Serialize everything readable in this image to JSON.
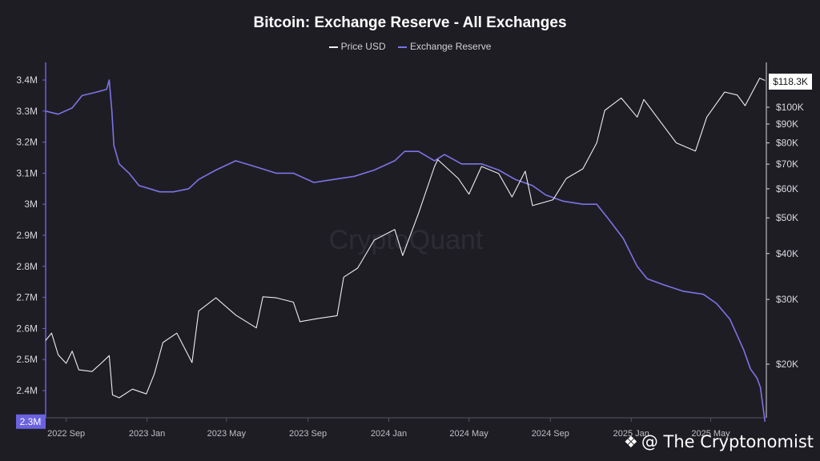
{
  "chart_data": {
    "type": "line",
    "title": "Bitcoin: Exchange Reserve - All Exchanges",
    "watermark": "CryptoQuant",
    "x_ticks": [
      "2022 Sep",
      "2023 Jan",
      "2023 May",
      "2023 Sep",
      "2024 Jan",
      "2024 May",
      "2024 Sep",
      "2025 Jan",
      "2025 May"
    ],
    "x_range": [
      "2022-08",
      "2025-07"
    ],
    "left_axis": {
      "series": "Exchange Reserve",
      "ylim": [
        2.28,
        3.42
      ],
      "ticks": [
        {
          "value": 3.4,
          "label": "3.4M"
        },
        {
          "value": 3.3,
          "label": "3.3M"
        },
        {
          "value": 3.2,
          "label": "3.2M"
        },
        {
          "value": 3.1,
          "label": "3.1M"
        },
        {
          "value": 3.0,
          "label": "3M"
        },
        {
          "value": 2.9,
          "label": "2.9M"
        },
        {
          "value": 2.8,
          "label": "2.8M"
        },
        {
          "value": 2.7,
          "label": "2.7M"
        },
        {
          "value": 2.6,
          "label": "2.6M"
        },
        {
          "value": 2.5,
          "label": "2.5M"
        },
        {
          "value": 2.4,
          "label": "2.4M"
        }
      ],
      "current_label": "2.3M",
      "current_value": 2.3
    },
    "right_axis": {
      "series": "Price USD",
      "scale": "log",
      "ticks": [
        {
          "value": 100000,
          "label": "$100K"
        },
        {
          "value": 90000,
          "label": "$90K"
        },
        {
          "value": 80000,
          "label": "$80K"
        },
        {
          "value": 70000,
          "label": "$70K"
        },
        {
          "value": 60000,
          "label": "$60K"
        },
        {
          "value": 50000,
          "label": "$50K"
        },
        {
          "value": 40000,
          "label": "$40K"
        },
        {
          "value": 30000,
          "label": "$30K"
        },
        {
          "value": 20000,
          "label": "$20K"
        }
      ],
      "current_label": "$118.3K",
      "current_value": 118300
    },
    "series": [
      {
        "name": "Exchange Reserve",
        "color": "#7b74e6",
        "unit": "M BTC",
        "points": [
          [
            "2022-08-01",
            3.3
          ],
          [
            "2022-08-20",
            3.29
          ],
          [
            "2022-09-10",
            3.31
          ],
          [
            "2022-09-25",
            3.35
          ],
          [
            "2022-10-15",
            3.36
          ],
          [
            "2022-11-01",
            3.37
          ],
          [
            "2022-11-05",
            3.4
          ],
          [
            "2022-11-09",
            3.3
          ],
          [
            "2022-11-12",
            3.19
          ],
          [
            "2022-11-20",
            3.13
          ],
          [
            "2022-12-05",
            3.1
          ],
          [
            "2022-12-20",
            3.06
          ],
          [
            "2023-01-05",
            3.05
          ],
          [
            "2023-01-20",
            3.04
          ],
          [
            "2023-02-10",
            3.04
          ],
          [
            "2023-03-05",
            3.05
          ],
          [
            "2023-03-20",
            3.08
          ],
          [
            "2023-04-15",
            3.11
          ],
          [
            "2023-05-15",
            3.14
          ],
          [
            "2023-06-15",
            3.12
          ],
          [
            "2023-07-15",
            3.1
          ],
          [
            "2023-08-10",
            3.1
          ],
          [
            "2023-09-10",
            3.07
          ],
          [
            "2023-10-10",
            3.08
          ],
          [
            "2023-11-10",
            3.09
          ],
          [
            "2023-12-10",
            3.11
          ],
          [
            "2024-01-10",
            3.14
          ],
          [
            "2024-01-25",
            3.17
          ],
          [
            "2024-02-15",
            3.17
          ],
          [
            "2024-03-10",
            3.14
          ],
          [
            "2024-03-25",
            3.16
          ],
          [
            "2024-04-20",
            3.13
          ],
          [
            "2024-05-20",
            3.13
          ],
          [
            "2024-06-15",
            3.11
          ],
          [
            "2024-07-10",
            3.08
          ],
          [
            "2024-08-05",
            3.06
          ],
          [
            "2024-08-25",
            3.03
          ],
          [
            "2024-09-20",
            3.01
          ],
          [
            "2024-10-20",
            3.0
          ],
          [
            "2024-11-10",
            3.0
          ],
          [
            "2024-11-25",
            2.96
          ],
          [
            "2024-12-20",
            2.89
          ],
          [
            "2025-01-10",
            2.8
          ],
          [
            "2025-01-25",
            2.76
          ],
          [
            "2025-02-20",
            2.74
          ],
          [
            "2025-03-20",
            2.72
          ],
          [
            "2025-04-20",
            2.71
          ],
          [
            "2025-05-10",
            2.68
          ],
          [
            "2025-05-30",
            2.63
          ],
          [
            "2025-06-20",
            2.53
          ],
          [
            "2025-06-30",
            2.47
          ],
          [
            "2025-07-10",
            2.44
          ],
          [
            "2025-07-15",
            2.41
          ],
          [
            "2025-07-22",
            2.3
          ]
        ]
      },
      {
        "name": "Price USD",
        "color": "#ededf0",
        "unit": "USD",
        "points": [
          [
            "2022-08-01",
            23200
          ],
          [
            "2022-08-10",
            24300
          ],
          [
            "2022-08-20",
            21200
          ],
          [
            "2022-09-01",
            20100
          ],
          [
            "2022-09-10",
            21700
          ],
          [
            "2022-09-20",
            19300
          ],
          [
            "2022-10-10",
            19100
          ],
          [
            "2022-10-25",
            20200
          ],
          [
            "2022-11-05",
            21100
          ],
          [
            "2022-11-10",
            16500
          ],
          [
            "2022-11-20",
            16200
          ],
          [
            "2022-12-10",
            17100
          ],
          [
            "2022-12-31",
            16600
          ],
          [
            "2023-01-12",
            18800
          ],
          [
            "2023-01-25",
            22900
          ],
          [
            "2023-02-15",
            24300
          ],
          [
            "2023-03-10",
            20200
          ],
          [
            "2023-03-20",
            27900
          ],
          [
            "2023-04-15",
            30300
          ],
          [
            "2023-05-15",
            27200
          ],
          [
            "2023-06-15",
            25100
          ],
          [
            "2023-06-25",
            30500
          ],
          [
            "2023-07-15",
            30300
          ],
          [
            "2023-08-10",
            29500
          ],
          [
            "2023-08-20",
            26100
          ],
          [
            "2023-09-15",
            26600
          ],
          [
            "2023-10-15",
            27100
          ],
          [
            "2023-10-25",
            34500
          ],
          [
            "2023-11-15",
            36500
          ],
          [
            "2023-12-10",
            43500
          ],
          [
            "2024-01-10",
            46500
          ],
          [
            "2024-01-22",
            39500
          ],
          [
            "2024-02-15",
            51500
          ],
          [
            "2024-03-10",
            69000
          ],
          [
            "2024-03-15",
            72000
          ],
          [
            "2024-04-15",
            64000
          ],
          [
            "2024-05-01",
            58000
          ],
          [
            "2024-05-20",
            69000
          ],
          [
            "2024-06-15",
            66000
          ],
          [
            "2024-07-05",
            57000
          ],
          [
            "2024-07-25",
            67000
          ],
          [
            "2024-08-05",
            54000
          ],
          [
            "2024-09-05",
            56000
          ],
          [
            "2024-09-25",
            64000
          ],
          [
            "2024-10-20",
            68000
          ],
          [
            "2024-11-10",
            80000
          ],
          [
            "2024-11-22",
            98000
          ],
          [
            "2024-12-17",
            106000
          ],
          [
            "2025-01-10",
            94000
          ],
          [
            "2025-01-20",
            105000
          ],
          [
            "2025-02-25",
            86000
          ],
          [
            "2025-03-10",
            80000
          ],
          [
            "2025-04-08",
            76000
          ],
          [
            "2025-04-25",
            94000
          ],
          [
            "2025-05-22",
            110000
          ],
          [
            "2025-06-10",
            108000
          ],
          [
            "2025-06-22",
            101000
          ],
          [
            "2025-07-14",
            120000
          ],
          [
            "2025-07-22",
            118300
          ]
        ]
      }
    ],
    "legend": [
      "Price USD",
      "Exchange Reserve"
    ],
    "legend_position": "top-center",
    "grid": false
  },
  "branding": {
    "credit": "@ The Cryptonomist"
  }
}
